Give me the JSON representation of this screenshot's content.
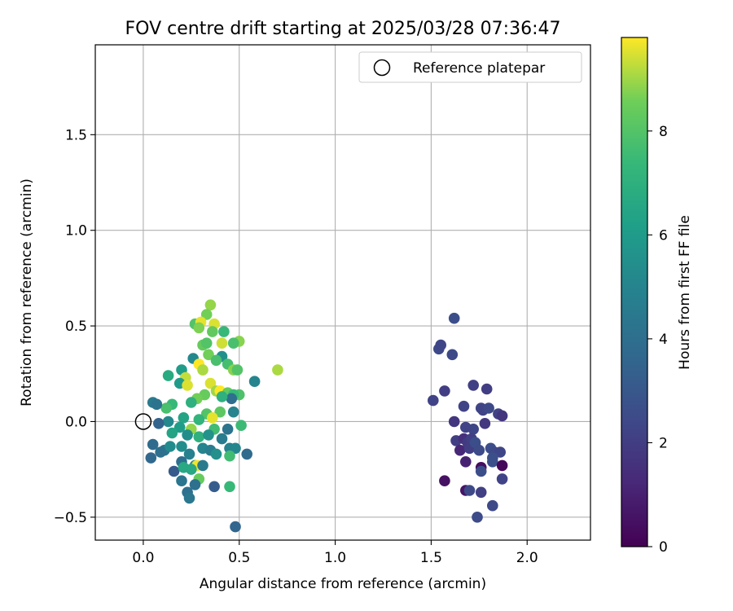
{
  "chart_data": {
    "type": "scatter",
    "title": "FOV centre drift starting at 2025/03/28 07:36:47",
    "xlabel": "Angular distance from reference (arcmin)",
    "ylabel": "Rotation from reference (arcmin)",
    "xlim": [
      -0.25,
      2.33
    ],
    "ylim": [
      -0.62,
      1.97
    ],
    "xticks": [
      0.0,
      0.5,
      1.0,
      1.5,
      2.0
    ],
    "yticks": [
      -0.5,
      0.0,
      0.5,
      1.0,
      1.5
    ],
    "xtick_labels": [
      "0.0",
      "0.5",
      "1.0",
      "1.5",
      "2.0"
    ],
    "ytick_labels": [
      "−0.5",
      "0.0",
      "0.5",
      "1.0",
      "1.5"
    ],
    "grid": true,
    "colormap": "viridis",
    "colorbar": {
      "label": "Hours from first FF file",
      "range": [
        0,
        9.8
      ],
      "ticks": [
        0,
        2,
        4,
        6,
        8
      ],
      "tick_labels": [
        "0",
        "2",
        "4",
        "6",
        "8"
      ]
    },
    "legend": {
      "position": "top-right",
      "entries": [
        "Reference platepar"
      ]
    },
    "reference_point": {
      "name": "Reference platepar",
      "x": 0.0,
      "y": 0.0
    },
    "series": [
      {
        "name": "",
        "comment": "x, y in arcmin; c = hours from first FF file",
        "points": [
          [
            1.54,
            0.38,
            2.4
          ],
          [
            1.55,
            0.4,
            2.3
          ],
          [
            1.61,
            0.35,
            2.4
          ],
          [
            1.62,
            0.54,
            2.6
          ],
          [
            1.51,
            0.11,
            2.2
          ],
          [
            1.57,
            0.16,
            2.0
          ],
          [
            1.62,
            0.0,
            1.7
          ],
          [
            1.67,
            0.08,
            2.2
          ],
          [
            1.72,
            0.19,
            2.1
          ],
          [
            1.76,
            0.07,
            2.3
          ],
          [
            1.77,
            0.06,
            2.2
          ],
          [
            1.79,
            0.17,
            2.0
          ],
          [
            1.8,
            0.07,
            2.4
          ],
          [
            1.85,
            0.04,
            2.2
          ],
          [
            1.87,
            0.03,
            1.7
          ],
          [
            1.78,
            -0.01,
            1.8
          ],
          [
            1.72,
            -0.04,
            2.3
          ],
          [
            1.68,
            -0.03,
            2.2
          ],
          [
            1.63,
            -0.1,
            2.0
          ],
          [
            1.65,
            -0.15,
            1.2
          ],
          [
            1.67,
            -0.09,
            1.5
          ],
          [
            1.69,
            -0.11,
            1.9
          ],
          [
            1.71,
            -0.09,
            2.1
          ],
          [
            1.7,
            -0.14,
            2.0
          ],
          [
            1.68,
            -0.21,
            1.0
          ],
          [
            1.73,
            -0.11,
            2.6
          ],
          [
            1.75,
            -0.15,
            2.5
          ],
          [
            1.81,
            -0.14,
            2.6
          ],
          [
            1.83,
            -0.16,
            2.4
          ],
          [
            1.86,
            -0.16,
            2.3
          ],
          [
            1.82,
            -0.19,
            2.7
          ],
          [
            1.82,
            -0.21,
            2.7
          ],
          [
            1.87,
            -0.23,
            0.2
          ],
          [
            1.87,
            -0.3,
            2.2
          ],
          [
            1.76,
            -0.24,
            0.4
          ],
          [
            1.76,
            -0.26,
            2.6
          ],
          [
            1.57,
            -0.31,
            0.5
          ],
          [
            1.68,
            -0.36,
            0.6
          ],
          [
            1.7,
            -0.36,
            2.4
          ],
          [
            1.76,
            -0.37,
            2.1
          ],
          [
            1.82,
            -0.44,
            2.4
          ],
          [
            1.74,
            -0.5,
            2.5
          ],
          [
            0.35,
            0.61,
            8.9
          ],
          [
            0.33,
            0.56,
            8.6
          ],
          [
            0.27,
            0.51,
            8.0
          ],
          [
            0.3,
            0.52,
            9.6
          ],
          [
            0.37,
            0.51,
            9.5
          ],
          [
            0.29,
            0.49,
            8.7
          ],
          [
            0.36,
            0.47,
            8.3
          ],
          [
            0.42,
            0.47,
            7.4
          ],
          [
            0.5,
            0.42,
            8.8
          ],
          [
            0.47,
            0.41,
            7.8
          ],
          [
            0.41,
            0.41,
            9.4
          ],
          [
            0.31,
            0.4,
            8.4
          ],
          [
            0.33,
            0.41,
            8.0
          ],
          [
            0.26,
            0.33,
            5.2
          ],
          [
            0.34,
            0.35,
            8.6
          ],
          [
            0.41,
            0.34,
            5.5
          ],
          [
            0.38,
            0.32,
            7.8
          ],
          [
            0.44,
            0.3,
            7.7
          ],
          [
            0.29,
            0.3,
            9.8
          ],
          [
            0.31,
            0.27,
            9.1
          ],
          [
            0.2,
            0.27,
            6.1
          ],
          [
            0.47,
            0.27,
            8.8
          ],
          [
            0.49,
            0.27,
            8.0
          ],
          [
            0.58,
            0.21,
            5.0
          ],
          [
            0.7,
            0.27,
            9.1
          ],
          [
            0.13,
            0.24,
            6.7
          ],
          [
            0.22,
            0.23,
            9.3
          ],
          [
            0.19,
            0.2,
            6.0
          ],
          [
            0.23,
            0.19,
            9.5
          ],
          [
            0.35,
            0.2,
            9.5
          ],
          [
            0.38,
            0.16,
            9.0
          ],
          [
            0.4,
            0.16,
            9.8
          ],
          [
            0.44,
            0.15,
            8.3
          ],
          [
            0.5,
            0.14,
            7.9
          ],
          [
            0.47,
            0.14,
            7.4
          ],
          [
            0.46,
            0.12,
            4.0
          ],
          [
            0.41,
            0.13,
            7.0
          ],
          [
            0.32,
            0.14,
            8.4
          ],
          [
            0.28,
            0.12,
            8.6
          ],
          [
            0.25,
            0.1,
            7.0
          ],
          [
            0.15,
            0.09,
            7.4
          ],
          [
            0.12,
            0.07,
            7.8
          ],
          [
            0.05,
            0.1,
            4.5
          ],
          [
            0.07,
            0.09,
            4.2
          ],
          [
            0.47,
            0.05,
            5.0
          ],
          [
            0.4,
            0.05,
            8.2
          ],
          [
            0.33,
            0.04,
            8.0
          ],
          [
            0.36,
            0.02,
            9.6
          ],
          [
            0.29,
            0.01,
            7.2
          ],
          [
            0.21,
            0.02,
            6.4
          ],
          [
            0.13,
            0.0,
            5.2
          ],
          [
            0.08,
            -0.01,
            3.5
          ],
          [
            0.19,
            -0.03,
            6.1
          ],
          [
            0.25,
            -0.04,
            8.9
          ],
          [
            0.37,
            -0.04,
            7.6
          ],
          [
            0.44,
            -0.04,
            4.2
          ],
          [
            0.51,
            -0.02,
            7.5
          ],
          [
            0.15,
            -0.06,
            6.4
          ],
          [
            0.23,
            -0.07,
            5.4
          ],
          [
            0.29,
            -0.08,
            7.0
          ],
          [
            0.34,
            -0.07,
            5.6
          ],
          [
            0.41,
            -0.09,
            4.6
          ],
          [
            0.05,
            -0.12,
            3.8
          ],
          [
            0.11,
            -0.15,
            4.3
          ],
          [
            0.14,
            -0.13,
            5.3
          ],
          [
            0.2,
            -0.13,
            5.4
          ],
          [
            0.24,
            -0.17,
            4.8
          ],
          [
            0.31,
            -0.14,
            5.0
          ],
          [
            0.35,
            -0.15,
            4.7
          ],
          [
            0.38,
            -0.17,
            5.5
          ],
          [
            0.45,
            -0.14,
            4.9
          ],
          [
            0.48,
            -0.14,
            5.1
          ],
          [
            0.54,
            -0.17,
            3.8
          ],
          [
            0.45,
            -0.18,
            7.6
          ],
          [
            0.04,
            -0.19,
            3.7
          ],
          [
            0.09,
            -0.16,
            4.1
          ],
          [
            0.2,
            -0.21,
            4.0
          ],
          [
            0.27,
            -0.23,
            5.3
          ],
          [
            0.28,
            -0.23,
            9.7
          ],
          [
            0.31,
            -0.23,
            4.5
          ],
          [
            0.16,
            -0.26,
            3.1
          ],
          [
            0.21,
            -0.24,
            6.6
          ],
          [
            0.25,
            -0.25,
            6.6
          ],
          [
            0.29,
            -0.3,
            8.4
          ],
          [
            0.27,
            -0.33,
            4.1
          ],
          [
            0.2,
            -0.31,
            4.3
          ],
          [
            0.37,
            -0.34,
            3.2
          ],
          [
            0.45,
            -0.34,
            7.4
          ],
          [
            0.23,
            -0.37,
            4.1
          ],
          [
            0.24,
            -0.4,
            4.4
          ],
          [
            0.48,
            -0.55,
            3.6
          ]
        ]
      }
    ]
  }
}
